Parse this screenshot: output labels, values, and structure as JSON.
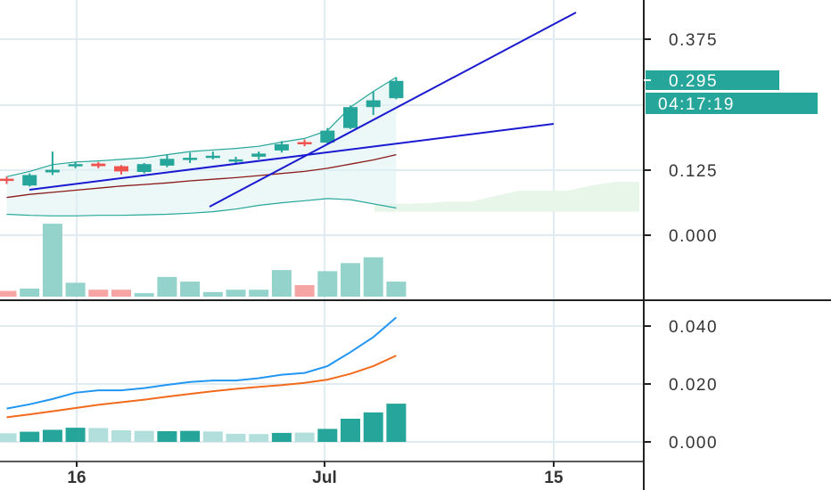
{
  "colors": {
    "up": "#26a69a",
    "down": "#ef5350",
    "up_volume": "#93d3cc",
    "down_volume": "#f5a5a3",
    "macd_line": "#2196f3",
    "signal_line": "#f26b1d",
    "hist_strong": "#26a69a",
    "hist_weak": "#b2dfdb",
    "trendline": "#1a1ad0",
    "bb_band": "#26a69a",
    "bb_fill": "#e0f2f1",
    "ma_line": "#8b1a1a",
    "cloud": "#e8f5e9",
    "grid": "#e1ecf2",
    "axis_line": "#222222",
    "text": "#333333",
    "price_badge": "#26a69a"
  },
  "chart_data": [
    {
      "type": "candlestick",
      "panel": "price",
      "y_ticks": [
        "0.375",
        "0.125",
        "0.000"
      ],
      "x_ticks": [
        "16",
        "Jul",
        "15"
      ],
      "last_price_label": "0.295",
      "countdown_label": "04:17:19",
      "candles": [
        {
          "o": 0.108,
          "h": 0.112,
          "l": 0.098,
          "c": 0.104
        },
        {
          "o": 0.095,
          "h": 0.118,
          "l": 0.093,
          "c": 0.115
        },
        {
          "o": 0.12,
          "h": 0.16,
          "l": 0.115,
          "c": 0.125
        },
        {
          "o": 0.134,
          "h": 0.14,
          "l": 0.128,
          "c": 0.136
        },
        {
          "o": 0.137,
          "h": 0.14,
          "l": 0.128,
          "c": 0.132
        },
        {
          "o": 0.132,
          "h": 0.134,
          "l": 0.116,
          "c": 0.122
        },
        {
          "o": 0.121,
          "h": 0.138,
          "l": 0.118,
          "c": 0.136
        },
        {
          "o": 0.133,
          "h": 0.155,
          "l": 0.13,
          "c": 0.146
        },
        {
          "o": 0.146,
          "h": 0.158,
          "l": 0.138,
          "c": 0.148
        },
        {
          "o": 0.15,
          "h": 0.16,
          "l": 0.145,
          "c": 0.152
        },
        {
          "o": 0.143,
          "h": 0.15,
          "l": 0.138,
          "c": 0.145
        },
        {
          "o": 0.15,
          "h": 0.16,
          "l": 0.145,
          "c": 0.156
        },
        {
          "o": 0.162,
          "h": 0.18,
          "l": 0.158,
          "c": 0.174
        },
        {
          "o": 0.178,
          "h": 0.183,
          "l": 0.17,
          "c": 0.174
        },
        {
          "o": 0.177,
          "h": 0.205,
          "l": 0.175,
          "c": 0.2
        },
        {
          "o": 0.205,
          "h": 0.248,
          "l": 0.203,
          "c": 0.245
        },
        {
          "o": 0.245,
          "h": 0.275,
          "l": 0.23,
          "c": 0.258
        },
        {
          "o": 0.262,
          "h": 0.302,
          "l": 0.26,
          "c": 0.295
        }
      ],
      "bollinger_upper": [
        0.112,
        0.122,
        0.135,
        0.14,
        0.142,
        0.145,
        0.148,
        0.154,
        0.16,
        0.163,
        0.166,
        0.17,
        0.178,
        0.185,
        0.2,
        0.245,
        0.275,
        0.302
      ],
      "bollinger_lower": [
        0.04,
        0.038,
        0.037,
        0.037,
        0.038,
        0.038,
        0.039,
        0.04,
        0.042,
        0.045,
        0.05,
        0.057,
        0.062,
        0.066,
        0.07,
        0.068,
        0.06,
        0.052
      ],
      "moving_average": [
        0.072,
        0.078,
        0.082,
        0.086,
        0.09,
        0.094,
        0.097,
        0.1,
        0.104,
        0.107,
        0.11,
        0.114,
        0.118,
        0.122,
        0.128,
        0.136,
        0.144,
        0.154
      ],
      "cloud_upper": [
        0.06,
        0.06,
        0.061,
        0.064,
        0.064,
        0.075,
        0.085,
        0.085,
        0.085,
        0.095,
        0.102,
        0.102
      ],
      "volume": [
        {
          "v": 0.5,
          "up": false
        },
        {
          "v": 0.7,
          "up": true
        },
        {
          "v": 6.3,
          "up": true
        },
        {
          "v": 1.2,
          "up": true
        },
        {
          "v": 0.6,
          "up": false
        },
        {
          "v": 0.6,
          "up": false
        },
        {
          "v": 0.3,
          "up": true
        },
        {
          "v": 1.7,
          "up": true
        },
        {
          "v": 1.3,
          "up": true
        },
        {
          "v": 0.4,
          "up": true
        },
        {
          "v": 0.6,
          "up": true
        },
        {
          "v": 0.6,
          "up": true
        },
        {
          "v": 2.3,
          "up": true
        },
        {
          "v": 1.0,
          "up": false
        },
        {
          "v": 2.2,
          "up": true
        },
        {
          "v": 2.9,
          "up": true
        },
        {
          "v": 3.4,
          "up": true
        },
        {
          "v": 1.3,
          "up": true
        }
      ]
    },
    {
      "type": "macd",
      "panel": "indicator",
      "y_ticks": [
        "0.040",
        "0.020",
        "0.000"
      ],
      "ylim": [
        0,
        0.045
      ],
      "macd": [
        0.0115,
        0.013,
        0.0148,
        0.017,
        0.0178,
        0.0178,
        0.0186,
        0.0197,
        0.0207,
        0.0212,
        0.0212,
        0.022,
        0.0232,
        0.0238,
        0.0262,
        0.031,
        0.0362,
        0.043
      ],
      "signal": [
        0.0085,
        0.0095,
        0.0106,
        0.0117,
        0.0128,
        0.0137,
        0.0146,
        0.0156,
        0.0166,
        0.0175,
        0.0183,
        0.019,
        0.0196,
        0.0204,
        0.0215,
        0.0235,
        0.0262,
        0.0298
      ],
      "histogram": [
        {
          "v": 0.003,
          "strong": false
        },
        {
          "v": 0.0035,
          "strong": true
        },
        {
          "v": 0.0042,
          "strong": true
        },
        {
          "v": 0.0049,
          "strong": true
        },
        {
          "v": 0.0048,
          "strong": false
        },
        {
          "v": 0.004,
          "strong": false
        },
        {
          "v": 0.0038,
          "strong": false
        },
        {
          "v": 0.0037,
          "strong": true
        },
        {
          "v": 0.0038,
          "strong": true
        },
        {
          "v": 0.0036,
          "strong": false
        },
        {
          "v": 0.0028,
          "strong": false
        },
        {
          "v": 0.0027,
          "strong": false
        },
        {
          "v": 0.0031,
          "strong": true
        },
        {
          "v": 0.0032,
          "strong": false
        },
        {
          "v": 0.0045,
          "strong": true
        },
        {
          "v": 0.008,
          "strong": true
        },
        {
          "v": 0.0102,
          "strong": true
        },
        {
          "v": 0.0132,
          "strong": true
        }
      ]
    }
  ]
}
